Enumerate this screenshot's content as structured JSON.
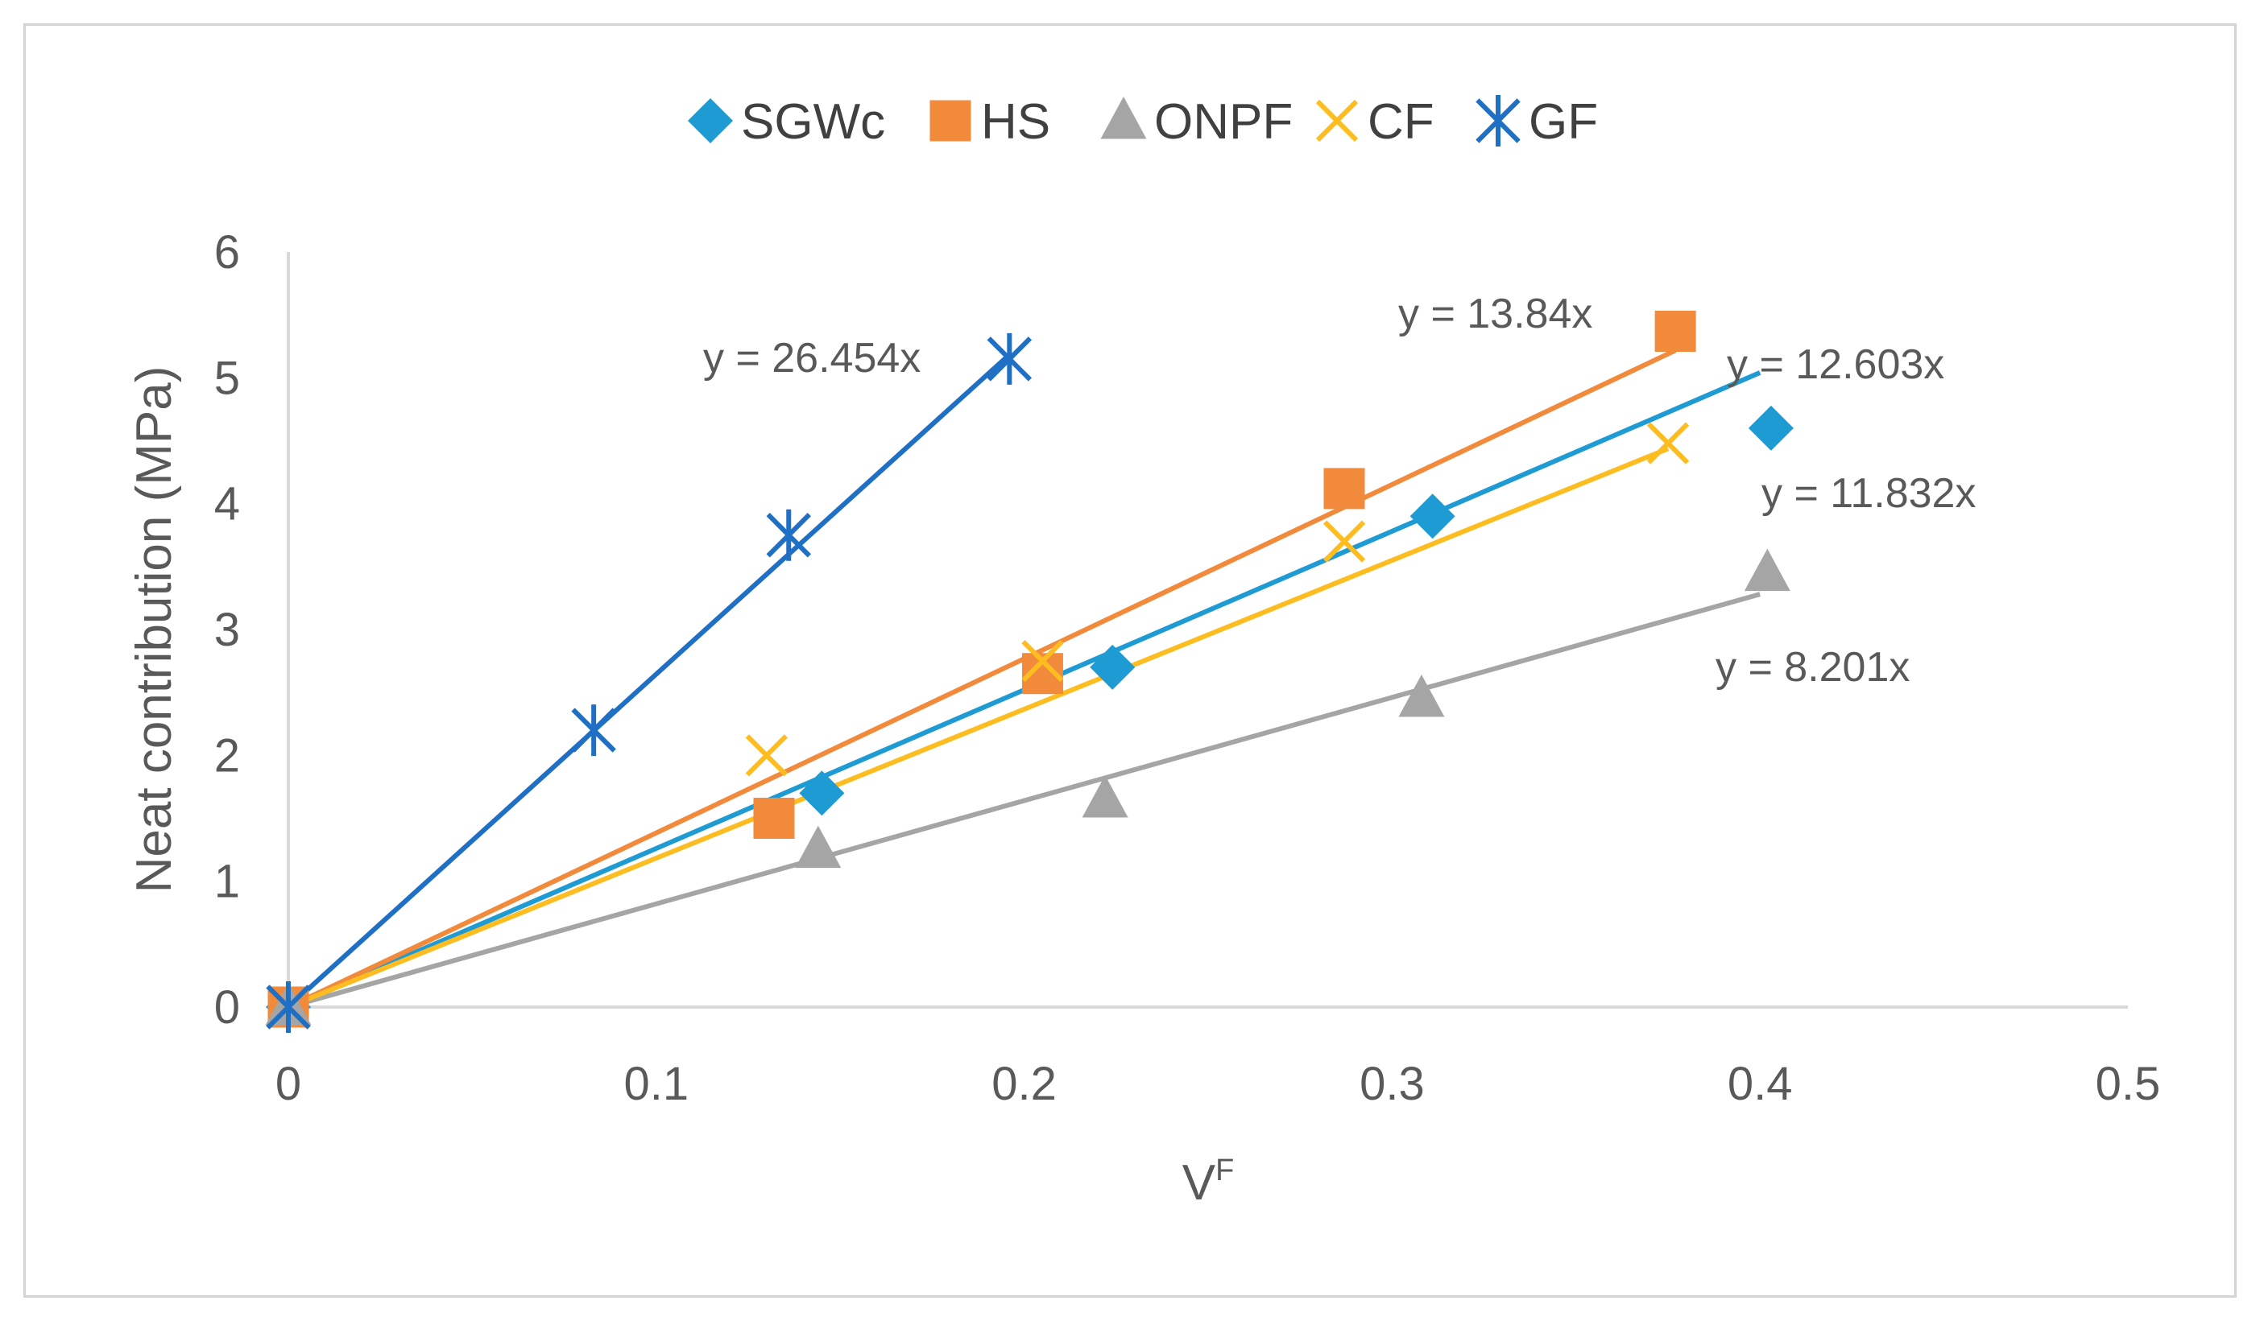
{
  "chart_data": {
    "type": "scatter",
    "title": "",
    "xlabel": "V",
    "xlabel_superscript": "F",
    "ylabel": "Neat contribution (MPa)",
    "xlim": [
      0,
      0.5
    ],
    "ylim": [
      0,
      6
    ],
    "x_ticks": [
      "0",
      "0.1",
      "0.2",
      "0.3",
      "0.4",
      "0.5"
    ],
    "y_ticks": [
      "0",
      "1",
      "2",
      "3",
      "4",
      "5",
      "6"
    ],
    "grid": false,
    "legend_position": "top",
    "series": [
      {
        "name": "SGWc",
        "color": "#1f9bd4",
        "marker": "diamond",
        "points": [
          [
            0,
            0
          ],
          [
            0.145,
            1.7
          ],
          [
            0.224,
            2.7
          ],
          [
            0.311,
            3.9
          ],
          [
            0.403,
            4.6
          ]
        ],
        "trendline": {
          "slope": 12.603,
          "x_end": 0.4,
          "label": "y = 12.603x"
        }
      },
      {
        "name": "HS",
        "color": "#f28a3c",
        "marker": "square",
        "points": [
          [
            0,
            0
          ],
          [
            0.132,
            1.5
          ],
          [
            0.205,
            2.65
          ],
          [
            0.287,
            4.12
          ],
          [
            0.377,
            5.37
          ]
        ],
        "trendline": {
          "slope": 13.84,
          "x_end": 0.377,
          "label": "y = 13.84x"
        }
      },
      {
        "name": "ONPF",
        "color": "#a5a5a5",
        "marker": "triangle",
        "points": [
          [
            0,
            0
          ],
          [
            0.144,
            1.25
          ],
          [
            0.222,
            1.65
          ],
          [
            0.308,
            2.45
          ],
          [
            0.402,
            3.45
          ]
        ],
        "trendline": {
          "slope": 8.201,
          "x_end": 0.4,
          "label": "y = 8.201x"
        }
      },
      {
        "name": "CF",
        "color": "#fdbd21",
        "marker": "x",
        "points": [
          [
            0,
            0
          ],
          [
            0.13,
            2.0
          ],
          [
            0.205,
            2.75
          ],
          [
            0.287,
            3.7
          ],
          [
            0.375,
            4.48
          ]
        ],
        "trendline": {
          "slope": 11.832,
          "x_end": 0.375,
          "label": "y = 11.832x"
        }
      },
      {
        "name": "GF",
        "color": "#1f6fc5",
        "marker": "star",
        "points": [
          [
            0,
            0
          ],
          [
            0.083,
            2.2
          ],
          [
            0.136,
            3.75
          ],
          [
            0.196,
            5.15
          ]
        ],
        "trendline": {
          "slope": 26.454,
          "x_end": 0.196,
          "label": "y = 26.454x"
        }
      }
    ]
  }
}
